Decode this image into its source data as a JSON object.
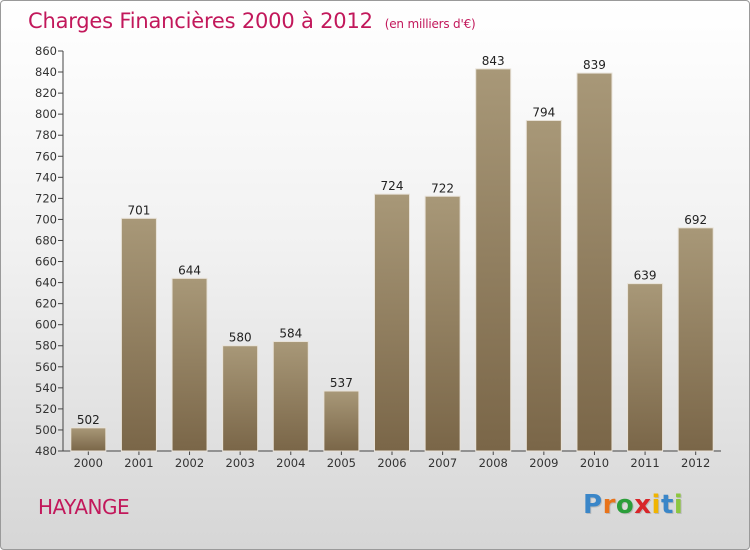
{
  "header": {
    "title": "Charges Financières 2000 à 2012",
    "subtitle": "(en milliers d'€)"
  },
  "footer": {
    "city": "HAYANGE",
    "logo_text": "Proxiti",
    "logo_colors": [
      "#3a86c8",
      "#e8731a",
      "#2b9e3a",
      "#d8262a",
      "#f0b400",
      "#3a86c8",
      "#8cc63f"
    ]
  },
  "colors": {
    "bar_top": "#a89878",
    "bar_bottom": "#7a6648",
    "title": "#c2185b"
  },
  "chart_data": {
    "type": "bar",
    "categories": [
      "2000",
      "2001",
      "2002",
      "2003",
      "2004",
      "2005",
      "2006",
      "2007",
      "2008",
      "2009",
      "2010",
      "2011",
      "2012"
    ],
    "values": [
      502,
      701,
      644,
      580,
      584,
      537,
      724,
      722,
      843,
      794,
      839,
      639,
      692
    ],
    "ylim": [
      480,
      860
    ],
    "yticks": [
      480,
      500,
      520,
      540,
      560,
      580,
      600,
      620,
      640,
      660,
      680,
      700,
      720,
      740,
      760,
      780,
      800,
      820,
      840,
      860
    ],
    "grid": false,
    "data_labels": true
  }
}
